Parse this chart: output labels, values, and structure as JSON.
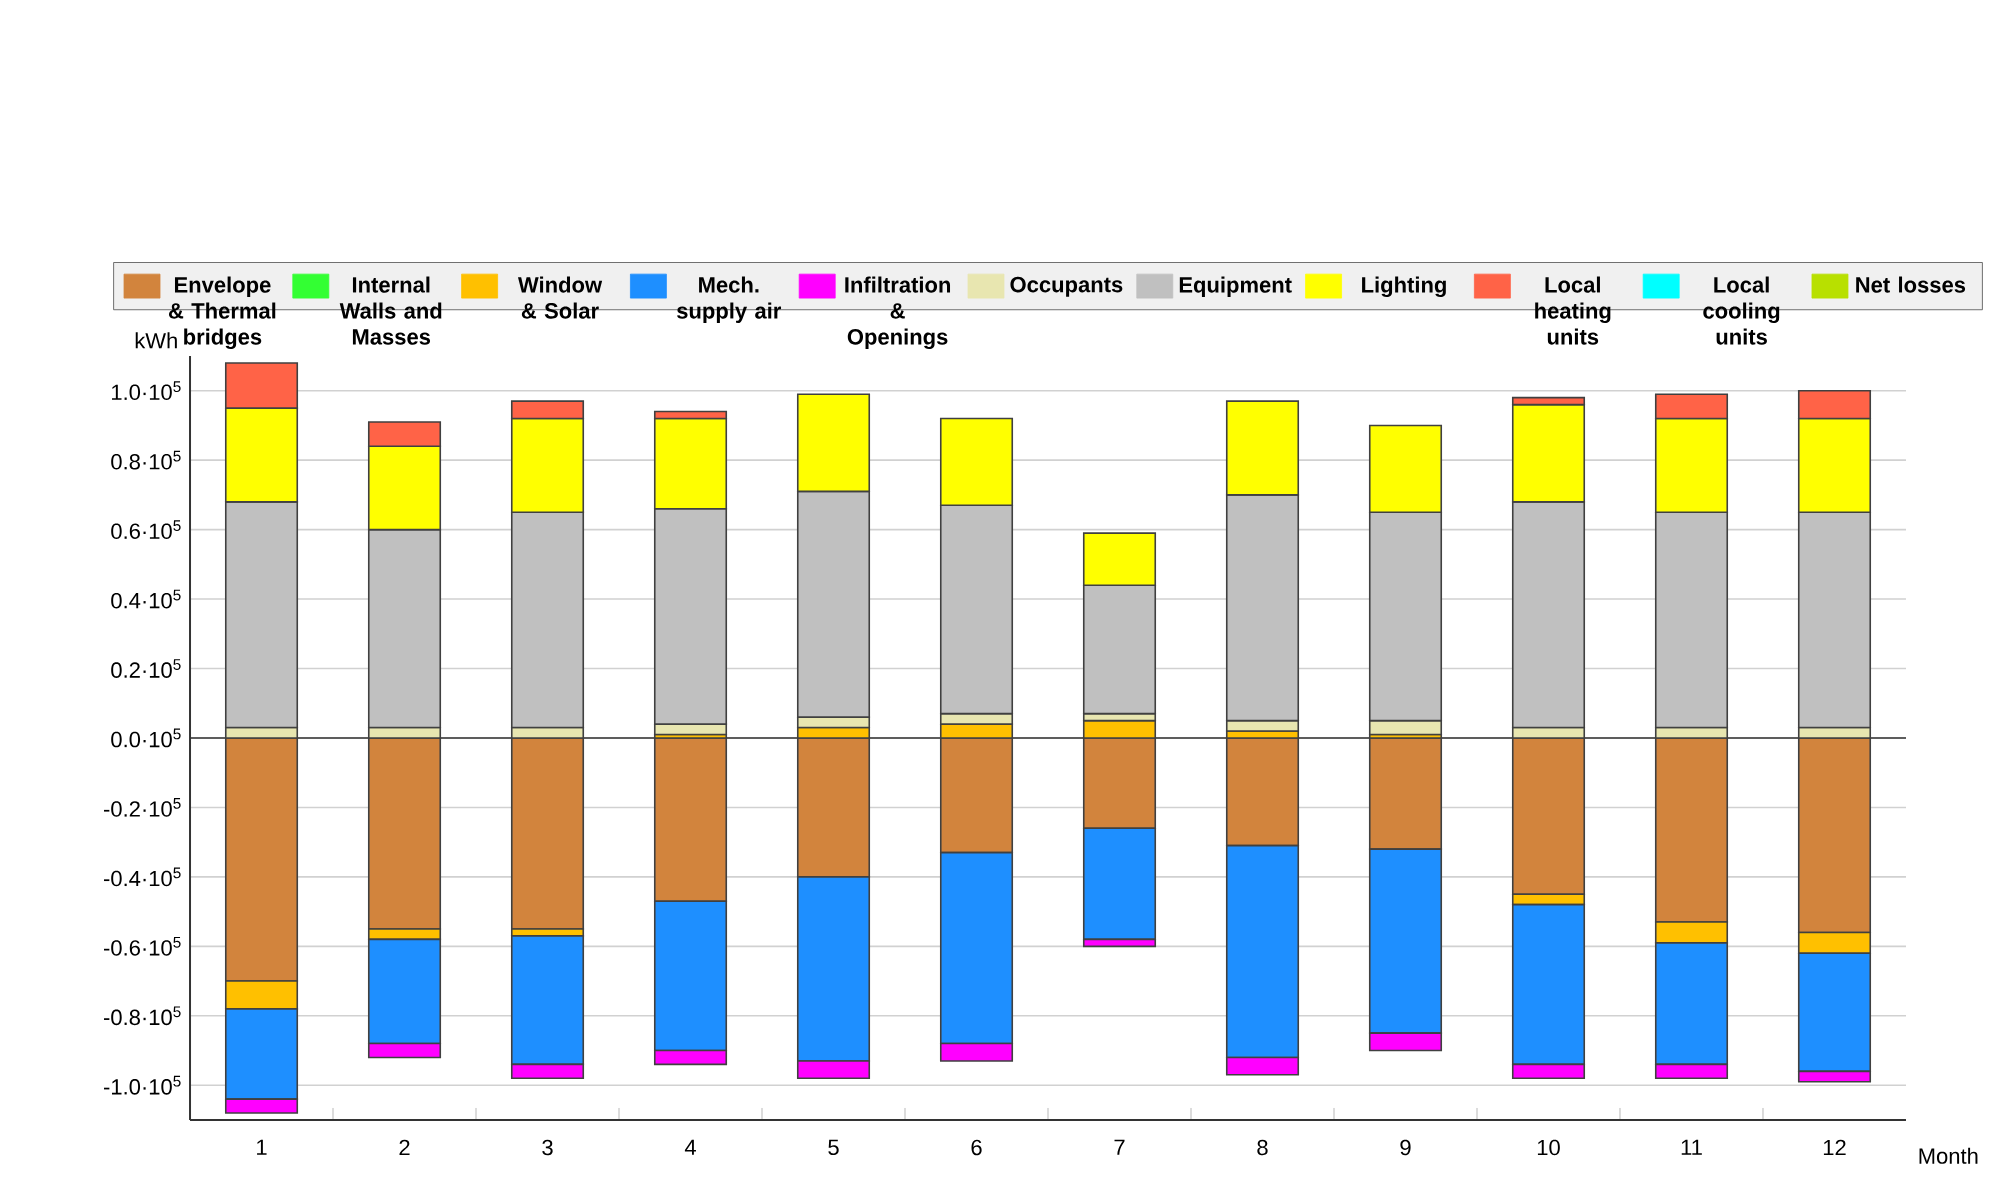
{
  "chart_data": {
    "type": "bar",
    "stacked": true,
    "ylabel": "kWh",
    "xlabel": "Month",
    "legend": "top",
    "grid": "y",
    "categories": [
      "1",
      "2",
      "3",
      "4",
      "5",
      "6",
      "7",
      "8",
      "9",
      "10",
      "11",
      "12"
    ],
    "ylim": [
      -110000,
      110000
    ],
    "yticks": [
      {
        "value": -100000,
        "label": "-1.0·10$^{5}$"
      },
      {
        "value": -80000,
        "label": "-0.8·10$^{5}$"
      },
      {
        "value": -60000,
        "label": "-0.6·10$^{5}$"
      },
      {
        "value": -40000,
        "label": "-0.4·10$^{5}$"
      },
      {
        "value": -20000,
        "label": "-0.2·10$^{5}$"
      },
      {
        "value": 0,
        "label": "0.0·10$^{5}$"
      },
      {
        "value": 20000,
        "label": "0.2·10$^{5}$"
      },
      {
        "value": 40000,
        "label": "0.4·10$^{5}$"
      },
      {
        "value": 60000,
        "label": "0.6·10$^{5}$"
      },
      {
        "value": 80000,
        "label": "0.8·10$^{5}$"
      },
      {
        "value": 100000,
        "label": "1.0·10$^{5}$"
      }
    ],
    "series": [
      {
        "name": "Envelope & Thermal bridges",
        "color": "#d2843d",
        "values": [
          -70000,
          -55000,
          -55000,
          -47000,
          -40000,
          -33000,
          -26000,
          -31000,
          -32000,
          -45000,
          -53000,
          -56000
        ]
      },
      {
        "name": "Internal Walls and Masses",
        "color": "#33ff33",
        "values": [
          0,
          0,
          0,
          0,
          0,
          0,
          0,
          0,
          0,
          0,
          0,
          0
        ]
      },
      {
        "name": "Window & Solar",
        "color": "#ffc000",
        "values": [
          0,
          0,
          0,
          1000,
          3000,
          4000,
          5000,
          2000,
          1000,
          0,
          0,
          0
        ]
      },
      {
        "color": "#ffc000",
        "values": [
          -8000,
          -3000,
          -2000,
          0,
          0,
          0,
          0,
          0,
          0,
          -3000,
          -6000,
          -6000
        ]
      },
      {
        "name": "Mech. supply air",
        "color": "#1e8fff",
        "values": [
          -26000,
          -30000,
          -37000,
          -43000,
          -53000,
          -55000,
          -32000,
          -61000,
          -53000,
          -46000,
          -35000,
          -34000
        ]
      },
      {
        "name": "Infiltration & Openings",
        "color": "#ff00ff",
        "values": [
          -4000,
          -4000,
          -4000,
          -4000,
          -5000,
          -5000,
          -2000,
          -5000,
          -5000,
          -4000,
          -4000,
          -3000
        ]
      },
      {
        "name": "Occupants",
        "color": "#e8e6b0",
        "values": [
          3000,
          3000,
          3000,
          3000,
          3000,
          3000,
          2000,
          3000,
          4000,
          3000,
          3000,
          3000
        ]
      },
      {
        "name": "Equipment",
        "color": "#c0c0c0",
        "values": [
          65000,
          57000,
          62000,
          62000,
          65000,
          60000,
          37000,
          65000,
          60000,
          65000,
          62000,
          62000
        ]
      },
      {
        "name": "Lighting",
        "color": "#ffff00",
        "values": [
          27000,
          24000,
          27000,
          26000,
          28000,
          25000,
          15000,
          27000,
          25000,
          28000,
          27000,
          27000
        ]
      },
      {
        "name": "Local heating units",
        "color": "#ff6347",
        "values": [
          13000,
          7000,
          5000,
          2000,
          0,
          0,
          0,
          0,
          0,
          2000,
          7000,
          8000
        ]
      },
      {
        "name": "Local cooling units",
        "color": "#00ffff",
        "values": [
          0,
          0,
          0,
          0,
          0,
          0,
          0,
          0,
          0,
          0,
          0,
          0
        ]
      },
      {
        "name": "Net losses",
        "color": "#b8e000",
        "values": [
          0,
          0,
          0,
          0,
          0,
          0,
          0,
          0,
          0,
          0,
          0,
          0
        ]
      }
    ]
  }
}
